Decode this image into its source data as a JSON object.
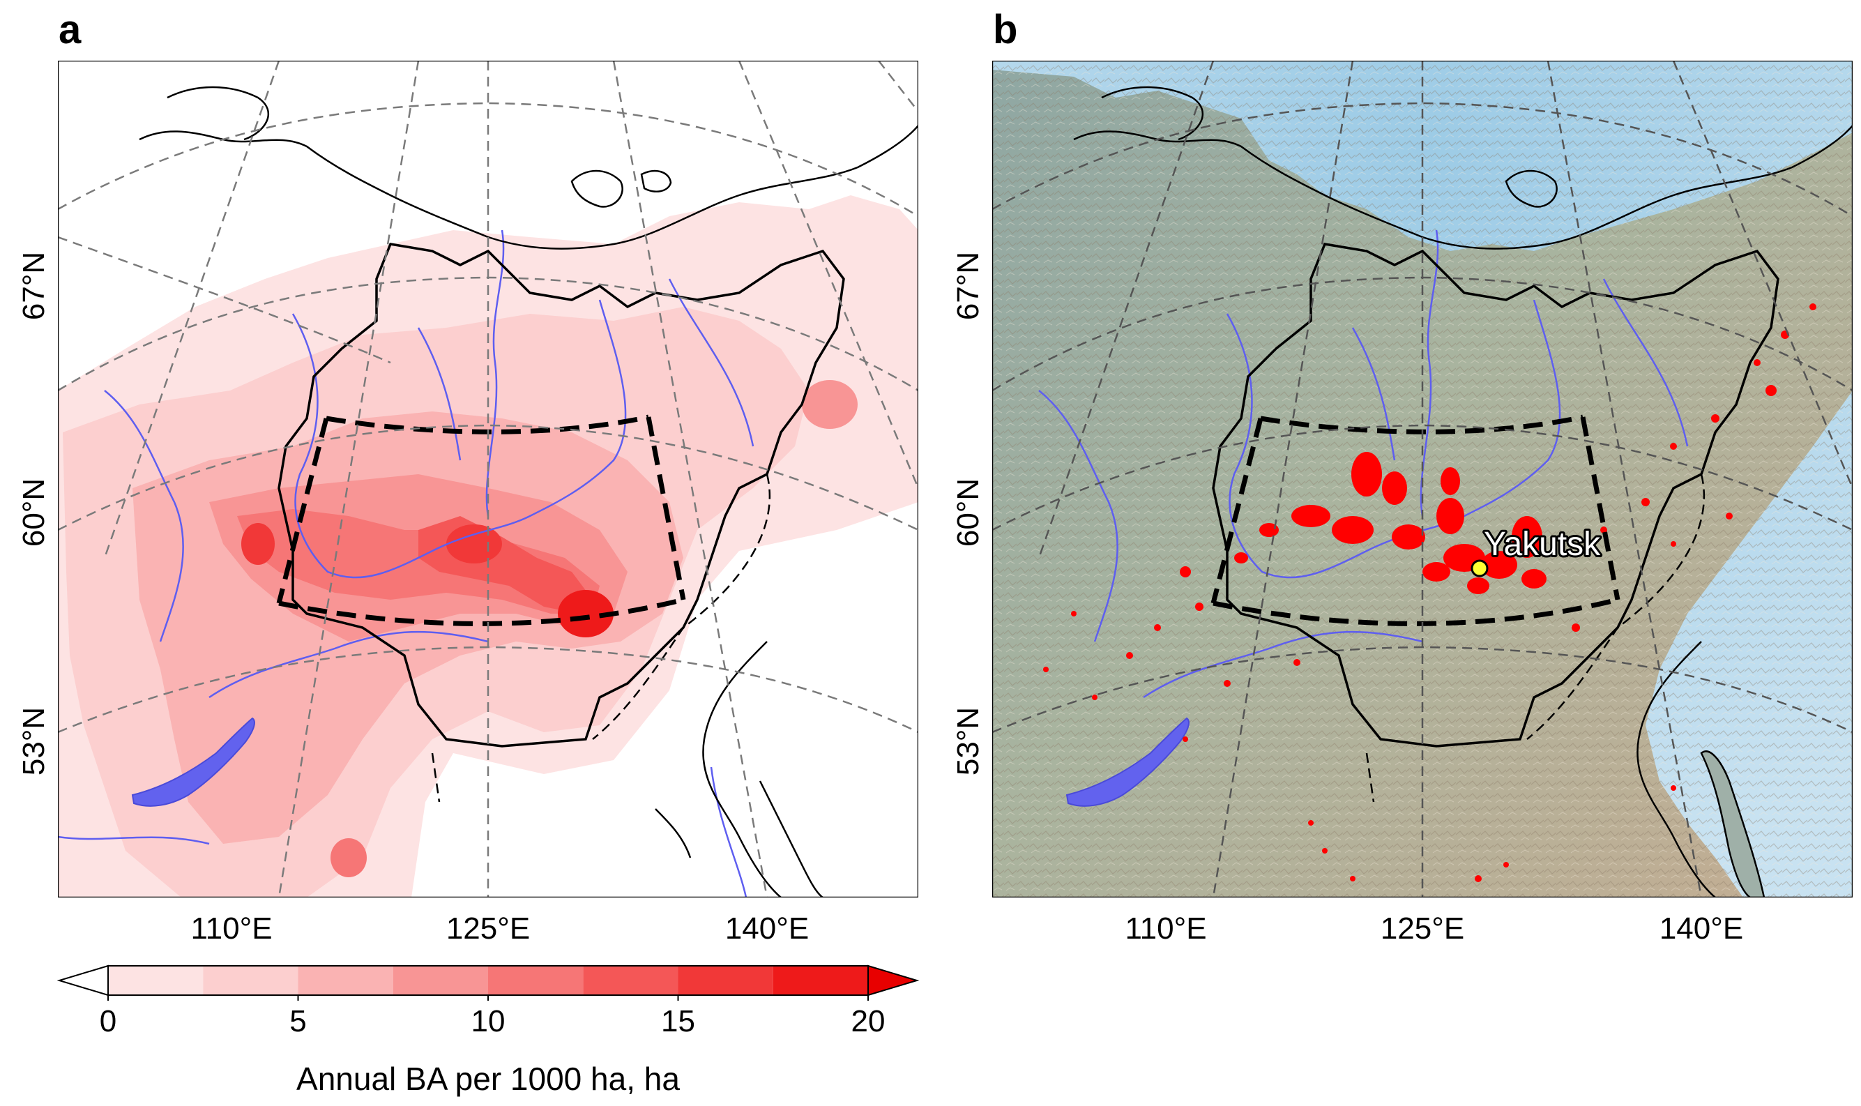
{
  "panels": [
    {
      "letter": "a",
      "lat_labels": [
        "67°N",
        "60°N",
        "53°N"
      ],
      "lon_labels": [
        "110°E",
        "125°E",
        "140°E"
      ]
    },
    {
      "letter": "b",
      "lat_labels": [
        "67°N",
        "60°N",
        "53°N"
      ],
      "lon_labels": [
        "110°E",
        "125°E",
        "140°E"
      ],
      "city": "Yakutsk"
    }
  ],
  "colorbar": {
    "title": "Annual BA per 1000 ha, ha",
    "ticks": [
      "0",
      "5",
      "10",
      "15",
      "20"
    ],
    "tick_values": [
      0,
      5,
      10,
      15,
      20
    ],
    "range": [
      0,
      20
    ],
    "levels": [
      0,
      2.5,
      5,
      7.5,
      10,
      12.5,
      15,
      17.5,
      20
    ],
    "colors": [
      "#fde3e3",
      "#fccfcf",
      "#fab3b3",
      "#f89595",
      "#f67676",
      "#f45757",
      "#f13838",
      "#ee1a1a"
    ],
    "extend": "both",
    "under_color": "#ffffff",
    "over_color": "#e80000"
  },
  "colors": {
    "water": "#5e5ef0",
    "fire": "#ff0000",
    "city_marker": "#ffff33",
    "grid": "#7a7a7a"
  }
}
